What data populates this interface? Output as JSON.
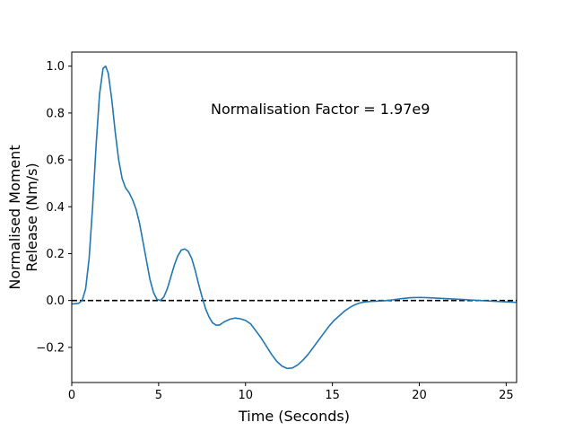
{
  "chart_data": {
    "type": "line",
    "xlabel": "Time (Seconds)",
    "ylabel_lines": [
      "Normalised Moment",
      "Release (Nm/s)"
    ],
    "annotation": "Normalisation Factor = 1.97e9",
    "xlim": [
      0,
      25.6
    ],
    "ylim": [
      -0.35,
      1.06
    ],
    "x_ticks": [
      0,
      5,
      10,
      15,
      20,
      25
    ],
    "y_ticks": [
      -0.2,
      0.0,
      0.2,
      0.4,
      0.6,
      0.8,
      1.0
    ],
    "x_tick_labels": [
      "0",
      "5",
      "10",
      "15",
      "20",
      "25"
    ],
    "y_tick_labels": [
      "−0.2",
      "0.0",
      "0.2",
      "0.4",
      "0.6",
      "0.8",
      "1.0"
    ],
    "grid": false,
    "reference_line": {
      "y": 0,
      "style": "dashed",
      "color": "#000000"
    },
    "series": [
      {
        "color": "#1f77b4",
        "x": [
          0,
          0.4,
          0.6,
          0.8,
          1.0,
          1.2,
          1.4,
          1.6,
          1.8,
          1.95,
          2.1,
          2.3,
          2.5,
          2.7,
          2.9,
          3.1,
          3.3,
          3.5,
          3.7,
          3.9,
          4.1,
          4.3,
          4.5,
          4.7,
          4.9,
          5.1,
          5.3,
          5.5,
          5.7,
          5.9,
          6.1,
          6.3,
          6.5,
          6.7,
          6.9,
          7.1,
          7.3,
          7.5,
          7.7,
          7.9,
          8.1,
          8.3,
          8.5,
          8.8,
          9.1,
          9.4,
          9.7,
          10.0,
          10.3,
          10.6,
          10.9,
          11.2,
          11.5,
          11.8,
          12.1,
          12.4,
          12.7,
          13.0,
          13.3,
          13.6,
          13.9,
          14.2,
          14.5,
          14.8,
          15.1,
          15.4,
          15.7,
          16.0,
          16.3,
          16.6,
          16.9,
          17.2,
          17.5,
          18.0,
          18.5,
          19.0,
          19.5,
          20.0,
          20.5,
          21.0,
          21.5,
          22.0,
          22.5,
          23.0,
          23.5,
          24.0,
          24.5,
          25.0,
          25.6
        ],
        "y": [
          -0.015,
          -0.012,
          0.0,
          0.05,
          0.18,
          0.4,
          0.66,
          0.88,
          0.99,
          1.0,
          0.97,
          0.86,
          0.72,
          0.6,
          0.52,
          0.48,
          0.46,
          0.43,
          0.39,
          0.33,
          0.25,
          0.17,
          0.09,
          0.035,
          0.005,
          0.0,
          0.015,
          0.05,
          0.1,
          0.15,
          0.19,
          0.215,
          0.22,
          0.21,
          0.18,
          0.13,
          0.07,
          0.015,
          -0.035,
          -0.07,
          -0.095,
          -0.105,
          -0.105,
          -0.09,
          -0.08,
          -0.075,
          -0.078,
          -0.085,
          -0.1,
          -0.13,
          -0.16,
          -0.195,
          -0.23,
          -0.26,
          -0.28,
          -0.29,
          -0.288,
          -0.275,
          -0.255,
          -0.23,
          -0.2,
          -0.17,
          -0.14,
          -0.11,
          -0.085,
          -0.065,
          -0.045,
          -0.03,
          -0.018,
          -0.01,
          -0.006,
          -0.004,
          -0.003,
          -0.001,
          0.003,
          0.008,
          0.012,
          0.013,
          0.012,
          0.01,
          0.008,
          0.006,
          0.004,
          0.002,
          0.0,
          -0.002,
          -0.004,
          -0.006,
          -0.008
        ]
      }
    ]
  }
}
